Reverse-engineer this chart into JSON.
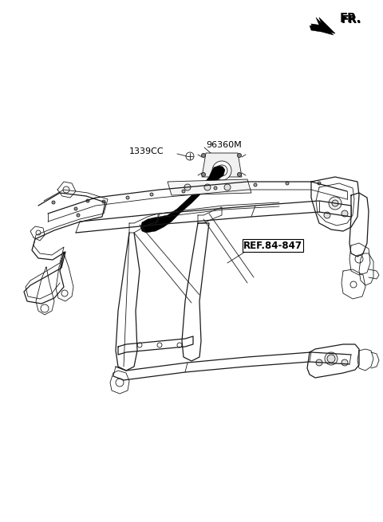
{
  "background_color": "#ffffff",
  "fr_label": "FR.",
  "label_1339CC": "1339CC",
  "label_96360M": "96360M",
  "label_ref": "REF.84-847",
  "figsize": [
    4.8,
    6.55
  ],
  "dpi": 100,
  "line_color": "#1a1a1a",
  "lw_thin": 0.6,
  "lw_med": 0.9,
  "lw_thick": 1.4
}
